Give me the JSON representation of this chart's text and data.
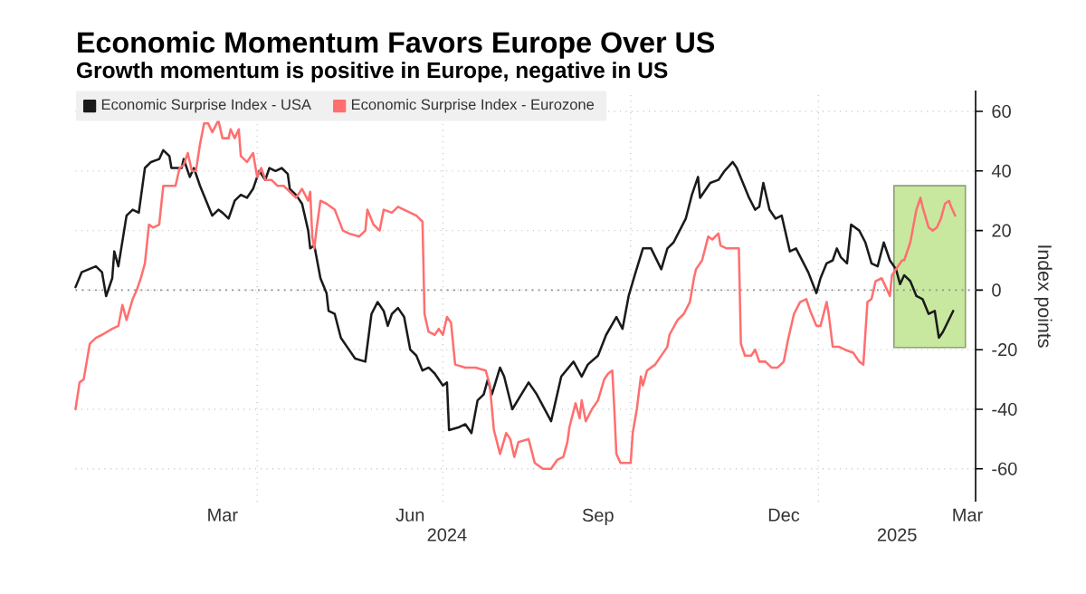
{
  "chart_data": {
    "type": "line",
    "title": "Economic Momentum Favors Europe Over US",
    "subtitle": "Growth momentum is positive in Europe, negative in US",
    "ylabel": "Index points",
    "xlim": [
      "2024-01-03",
      "2025-03-19"
    ],
    "ylim": [
      -71,
      67
    ],
    "xticks": [
      {
        "value": "2024-03-15",
        "label": "Mar"
      },
      {
        "value": "2024-04-01",
        "label": null
      },
      {
        "value": "2024-06-15",
        "label": "Jun"
      },
      {
        "value": "2024-07-01",
        "label": null
      },
      {
        "value": "2024-09-15",
        "label": "Sep"
      },
      {
        "value": "2024-10-01",
        "label": null
      },
      {
        "value": "2024-12-15",
        "label": "Dec"
      },
      {
        "value": "2025-01-01",
        "label": null
      },
      {
        "value": "2025-03-15",
        "label": "Mar"
      }
    ],
    "yticks": [
      -60,
      -40,
      -20,
      0,
      20,
      40,
      60
    ],
    "grid": true,
    "legend": "top left",
    "annotations": [
      "2024",
      "2025"
    ],
    "ref_lines": [
      {
        "axis": "y",
        "value": 0,
        "color": "#8c8c8c",
        "line_style": "dotted"
      }
    ],
    "bands": [
      {
        "axis": "x",
        "from": "2025-02-07",
        "to": "2025-03-14",
        "color": "#c8e8a0"
      }
    ],
    "series": [
      {
        "name": "Economic Surprise Index - USA",
        "color": "#1a1a1a",
        "x": [
          "2024-01-03",
          "2024-01-06",
          "2024-01-13",
          "2024-01-16",
          "2024-01-18",
          "2024-01-21",
          "2024-01-22",
          "2024-01-24",
          "2024-01-28",
          "2024-01-31",
          "2024-02-03",
          "2024-02-06",
          "2024-02-09",
          "2024-02-13",
          "2024-02-15",
          "2024-02-18",
          "2024-02-19",
          "2024-02-24",
          "2024-02-25",
          "2024-02-28",
          "2024-03-01",
          "2024-03-04",
          "2024-03-07",
          "2024-03-10",
          "2024-03-13",
          "2024-03-15",
          "2024-03-18",
          "2024-03-21",
          "2024-03-24",
          "2024-03-27",
          "2024-03-30",
          "2024-04-02",
          "2024-04-05",
          "2024-04-07",
          "2024-04-10",
          "2024-04-13",
          "2024-04-16",
          "2024-04-17",
          "2024-04-20",
          "2024-04-23",
          "2024-04-26",
          "2024-04-27",
          "2024-04-29",
          "2024-05-02",
          "2024-05-05",
          "2024-05-06",
          "2024-05-09",
          "2024-05-12",
          "2024-05-15",
          "2024-05-19",
          "2024-05-24",
          "2024-05-27",
          "2024-05-30",
          "2024-06-02",
          "2024-06-04",
          "2024-06-06",
          "2024-06-09",
          "2024-06-12",
          "2024-06-15",
          "2024-06-18",
          "2024-06-21",
          "2024-06-24",
          "2024-06-27",
          "2024-07-01",
          "2024-07-03",
          "2024-07-04",
          "2024-07-09",
          "2024-07-12",
          "2024-07-15",
          "2024-07-18",
          "2024-07-21",
          "2024-07-23",
          "2024-07-25",
          "2024-07-29",
          "2024-07-31",
          "2024-08-04",
          "2024-08-12",
          "2024-08-16",
          "2024-08-23",
          "2024-08-28",
          "2024-09-03",
          "2024-09-07",
          "2024-09-10",
          "2024-09-15",
          "2024-09-19",
          "2024-09-24",
          "2024-09-27",
          "2024-09-30",
          "2024-10-03",
          "2024-10-07",
          "2024-10-11",
          "2024-10-16",
          "2024-10-19",
          "2024-10-22",
          "2024-10-28",
          "2024-10-31",
          "2024-11-03",
          "2024-11-04",
          "2024-11-09",
          "2024-11-13",
          "2024-11-16",
          "2024-11-20",
          "2024-11-22",
          "2024-11-25",
          "2024-11-28",
          "2024-12-01",
          "2024-12-03",
          "2024-12-05",
          "2024-12-08",
          "2024-12-11",
          "2024-12-14",
          "2024-12-18",
          "2024-12-21",
          "2024-12-27",
          "2024-12-31",
          "2025-01-02",
          "2025-01-05",
          "2025-01-08",
          "2025-01-10",
          "2025-01-12",
          "2025-01-15",
          "2025-01-17",
          "2025-01-21",
          "2025-01-24",
          "2025-01-27",
          "2025-01-30",
          "2025-02-02",
          "2025-02-05",
          "2025-02-08",
          "2025-02-10",
          "2025-02-12",
          "2025-02-15",
          "2025-02-18",
          "2025-02-21",
          "2025-02-24",
          "2025-02-27",
          "2025-03-01",
          "2025-03-03",
          "2025-03-08"
        ],
        "values": [
          1,
          6,
          8,
          6,
          -2,
          4,
          13,
          8,
          25,
          27,
          26,
          41,
          43,
          44,
          47,
          45,
          41,
          41,
          44,
          38,
          41,
          35,
          30,
          25,
          27,
          26,
          24,
          30,
          32,
          31,
          34,
          40,
          37,
          41,
          40,
          41,
          39,
          34,
          32,
          29,
          20,
          14,
          15,
          4,
          -1,
          -7,
          -8,
          -16,
          -19,
          -23,
          -24,
          -8,
          -4,
          -7,
          -12,
          -8,
          -6,
          -9,
          -20,
          -22,
          -27,
          -26,
          -28,
          -32,
          -31,
          -47,
          -46,
          -45,
          -48,
          -37,
          -35,
          -30,
          -35,
          -26,
          -29,
          -40,
          -31,
          -35,
          -44,
          -29,
          -24,
          -29,
          -25,
          -22,
          -15,
          -9,
          -13,
          -2,
          5,
          14,
          14,
          7,
          14,
          16,
          24,
          32,
          38,
          31,
          36,
          37,
          40,
          43,
          41,
          36,
          31,
          27,
          28,
          36,
          27,
          24,
          25,
          13,
          14,
          6,
          -1,
          4,
          9,
          10,
          14,
          11,
          9,
          22,
          20,
          16,
          9,
          8,
          16,
          10,
          7,
          2,
          5,
          3,
          -2,
          -3,
          -8,
          -7,
          -16,
          -14,
          -7
        ]
      },
      {
        "name": "Economic Surprise Index - Eurozone",
        "color": "#ff6f6f",
        "x": [
          "2024-01-03",
          "2024-01-05",
          "2024-01-07",
          "2024-01-10",
          "2024-01-13",
          "2024-01-16",
          "2024-01-21",
          "2024-01-24",
          "2024-01-26",
          "2024-01-28",
          "2024-01-31",
          "2024-02-02",
          "2024-02-04",
          "2024-02-06",
          "2024-02-08",
          "2024-02-10",
          "2024-02-13",
          "2024-02-15",
          "2024-02-21",
          "2024-02-23",
          "2024-02-25",
          "2024-02-27",
          "2024-02-29",
          "2024-03-02",
          "2024-03-04",
          "2024-03-06",
          "2024-03-08",
          "2024-03-10",
          "2024-03-13",
          "2024-03-15",
          "2024-03-18",
          "2024-03-19",
          "2024-03-21",
          "2024-03-23",
          "2024-03-24",
          "2024-03-27",
          "2024-03-30",
          "2024-04-01",
          "2024-04-03",
          "2024-04-05",
          "2024-04-08",
          "2024-04-11",
          "2024-04-14",
          "2024-04-17",
          "2024-04-20",
          "2024-04-23",
          "2024-04-26",
          "2024-04-27",
          "2024-04-28",
          "2024-04-29",
          "2024-04-30",
          "2024-05-02",
          "2024-05-05",
          "2024-05-09",
          "2024-05-13",
          "2024-05-16",
          "2024-05-21",
          "2024-05-24",
          "2024-05-25",
          "2024-05-28",
          "2024-05-31",
          "2024-06-02",
          "2024-06-06",
          "2024-06-09",
          "2024-06-12",
          "2024-06-15",
          "2024-06-18",
          "2024-06-21",
          "2024-06-22",
          "2024-06-24",
          "2024-06-27",
          "2024-06-29",
          "2024-07-01",
          "2024-07-03",
          "2024-07-05",
          "2024-07-07",
          "2024-07-12",
          "2024-07-17",
          "2024-07-22",
          "2024-07-24",
          "2024-07-26",
          "2024-07-29",
          "2024-08-01",
          "2024-08-03",
          "2024-08-05",
          "2024-08-07",
          "2024-08-12",
          "2024-08-15",
          "2024-08-19",
          "2024-08-23",
          "2024-08-26",
          "2024-08-29",
          "2024-08-31",
          "2024-09-01",
          "2024-09-04",
          "2024-09-06",
          "2024-09-07",
          "2024-09-09",
          "2024-09-12",
          "2024-09-15",
          "2024-09-18",
          "2024-09-20",
          "2024-09-22",
          "2024-09-23",
          "2024-09-24",
          "2024-09-26",
          "2024-10-01",
          "2024-10-02",
          "2024-10-04",
          "2024-10-06",
          "2024-10-07",
          "2024-10-09",
          "2024-10-13",
          "2024-10-16",
          "2024-10-19",
          "2024-10-20",
          "2024-10-24",
          "2024-10-27",
          "2024-10-30",
          "2024-11-01",
          "2024-11-02",
          "2024-11-05",
          "2024-11-08",
          "2024-11-10",
          "2024-11-13",
          "2024-11-14",
          "2024-11-17",
          "2024-11-23",
          "2024-11-24",
          "2024-11-26",
          "2024-11-29",
          "2024-12-01",
          "2024-12-03",
          "2024-12-06",
          "2024-12-09",
          "2024-12-12",
          "2024-12-15",
          "2024-12-17",
          "2024-12-20",
          "2024-12-23",
          "2024-12-26",
          "2024-12-28",
          "2024-12-31",
          "2025-01-02",
          "2025-01-05",
          "2025-01-06",
          "2025-01-08",
          "2025-01-11",
          "2025-01-14",
          "2025-01-18",
          "2025-01-21",
          "2025-01-23",
          "2025-01-25",
          "2025-01-27",
          "2025-01-29",
          "2025-02-01",
          "2025-02-03",
          "2025-02-05",
          "2025-02-06",
          "2025-02-09",
          "2025-02-11",
          "2025-02-12",
          "2025-02-15",
          "2025-02-18",
          "2025-02-20",
          "2025-02-21",
          "2025-02-24",
          "2025-02-26",
          "2025-02-28",
          "2025-03-02",
          "2025-03-04",
          "2025-03-06",
          "2025-03-07",
          "2025-03-09"
        ],
        "values": [
          -40,
          -31,
          -30,
          -18,
          -16,
          -15,
          -13,
          -12,
          -5,
          -10,
          -3,
          0,
          4,
          9,
          22,
          21,
          22,
          35,
          35,
          41,
          42,
          46,
          40,
          40,
          49,
          56,
          56,
          53,
          57,
          51,
          51,
          54,
          51,
          54,
          45,
          43,
          46,
          38,
          41,
          37,
          37,
          35,
          35,
          33,
          31,
          34,
          30,
          33,
          18,
          14,
          20,
          30,
          29,
          27,
          20,
          19,
          18,
          20,
          27,
          22,
          20,
          27,
          26,
          28,
          27,
          26,
          25,
          23,
          -8,
          -14,
          -15,
          -13,
          -15,
          -9,
          -11,
          -25,
          -26,
          -26,
          -27,
          -32,
          -47,
          -55,
          -48,
          -50,
          -56,
          -51,
          -50,
          -58,
          -60,
          -60,
          -57,
          -56,
          -51,
          -46,
          -38,
          -43,
          -37,
          -44,
          -40,
          -37,
          -30,
          -28,
          -27,
          -40,
          -55,
          -58,
          -58,
          -48,
          -40,
          -29,
          -32,
          -27,
          -25,
          -22,
          -19,
          -15,
          -10,
          -8,
          -4,
          4,
          7,
          10,
          18,
          17,
          19,
          15,
          14,
          14,
          -18,
          -22,
          -22,
          -20,
          -24,
          -24,
          -26,
          -26,
          -24,
          -17,
          -8,
          -4,
          -3,
          -7,
          -12,
          -12,
          -4,
          -8,
          -19,
          -19,
          -20,
          -21,
          -24,
          -25,
          -4,
          -3,
          3,
          4,
          1,
          -2,
          5,
          8,
          10,
          10,
          16,
          27,
          31,
          28,
          21,
          20,
          21,
          24,
          29,
          30,
          28,
          25
        ]
      }
    ]
  }
}
